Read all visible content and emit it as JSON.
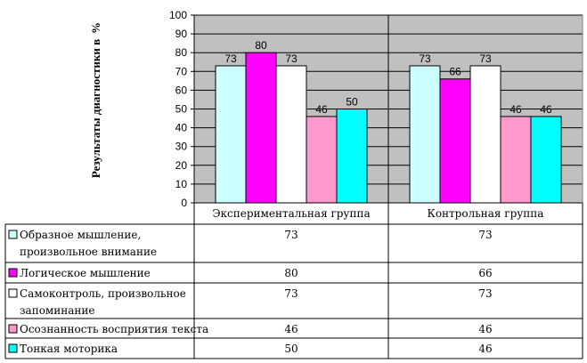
{
  "chart_data": {
    "type": "bar",
    "title": "",
    "xlabel": "",
    "ylabel": "Результаты диагностики в %",
    "ylabel_visible": "Результаты диагностики в",
    "ylim": [
      0,
      100
    ],
    "yticks": [
      "0",
      "10",
      "20",
      "30",
      "40",
      "50",
      "60",
      "70",
      "80",
      "90",
      "100"
    ],
    "grid": true,
    "legend": "data-table-below",
    "categories": [
      "Экспериментальная группа",
      "Контрольная группа"
    ],
    "series": [
      {
        "name": "Образное мышление, произвольное внимание",
        "name_lines": [
          "Образное мышление,",
          "произвольное внимание"
        ],
        "color": "#CCFFFF",
        "values": [
          73,
          73
        ],
        "labels": [
          "73",
          "73"
        ]
      },
      {
        "name": "Логическое мышление",
        "name_lines": [
          "Логическое мышление"
        ],
        "color": "#FF00FF",
        "values": [
          80,
          66
        ],
        "labels": [
          "80",
          "66"
        ]
      },
      {
        "name": "Самоконтроль, произвольное запоминание",
        "name_lines": [
          "Самоконтроль, произвольное",
          "запоминание"
        ],
        "color": "#FFFFFF",
        "values": [
          73,
          73
        ],
        "labels": [
          "73",
          "73"
        ]
      },
      {
        "name": "Осознанность восприятия текста",
        "name_lines": [
          "Осознанность восприятия текста"
        ],
        "color": "#FF99CC",
        "values": [
          46,
          46
        ],
        "labels": [
          "46",
          "46"
        ]
      },
      {
        "name": "Тонкая моторика",
        "name_lines": [
          "Тонкая моторика"
        ],
        "color": "#00FFFF",
        "values": [
          50,
          46
        ],
        "labels": [
          "50",
          "46"
        ]
      }
    ],
    "plot_background": "#C0C0C0"
  }
}
